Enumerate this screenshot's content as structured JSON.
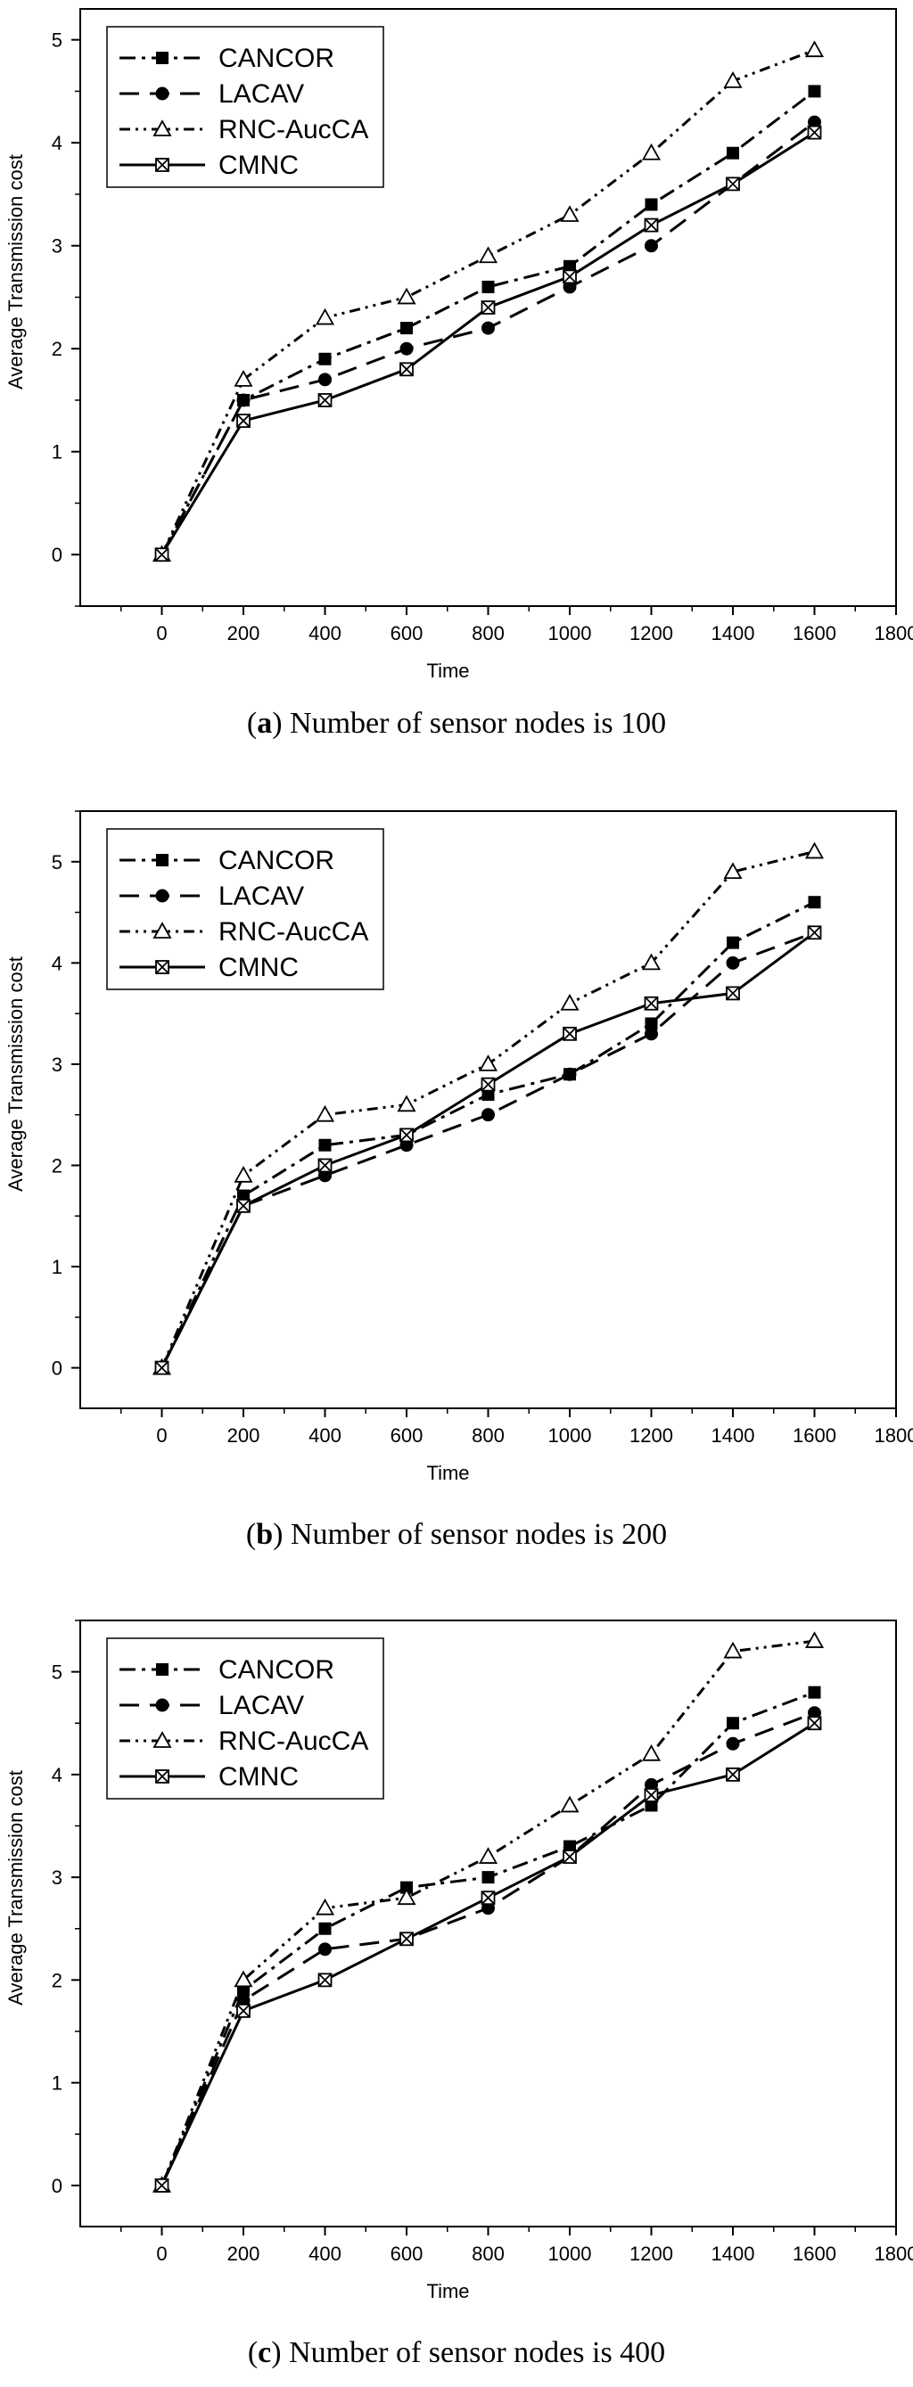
{
  "figure": {
    "panels": [
      {
        "caption_letter": "a",
        "caption_text": "Number of sensor nodes is 100"
      },
      {
        "caption_letter": "b",
        "caption_text": "Number of sensor nodes is 200"
      },
      {
        "caption_letter": "c",
        "caption_text": "Number of sensor nodes is 400"
      }
    ]
  },
  "chart_data": [
    {
      "type": "line",
      "title": "",
      "xlabel": "Time",
      "ylabel": "Average Transmission cost",
      "xlim": [
        -200,
        1800
      ],
      "ylim": [
        -0.5,
        5.3
      ],
      "xticks": [
        0,
        200,
        400,
        600,
        800,
        1000,
        1200,
        1400,
        1600,
        1800
      ],
      "yticks": [
        0,
        1,
        2,
        3,
        4,
        5
      ],
      "legend_position": "top-left",
      "grid": false,
      "x": [
        0,
        200,
        400,
        600,
        800,
        1000,
        1200,
        1400,
        1600
      ],
      "series": [
        {
          "name": "CANCOR",
          "marker": "square",
          "dash": "dash-dot",
          "values": [
            0,
            1.5,
            1.9,
            2.2,
            2.6,
            2.8,
            3.4,
            3.9,
            4.5
          ]
        },
        {
          "name": "LACAV",
          "marker": "circle",
          "dash": "dash",
          "values": [
            0,
            1.5,
            1.7,
            2.0,
            2.2,
            2.6,
            3.0,
            3.6,
            4.2
          ]
        },
        {
          "name": "RNC-AucCA",
          "marker": "triangle",
          "dash": "dash-dot-dot",
          "values": [
            0,
            1.7,
            2.3,
            2.5,
            2.9,
            3.3,
            3.9,
            4.6,
            4.9
          ]
        },
        {
          "name": "CMNC",
          "marker": "crossed-square",
          "dash": "solid",
          "values": [
            0,
            1.3,
            1.5,
            1.8,
            2.4,
            2.7,
            3.2,
            3.6,
            4.1
          ]
        }
      ]
    },
    {
      "type": "line",
      "title": "",
      "xlabel": "Time",
      "ylabel": "Average Transmission cost",
      "xlim": [
        -200,
        1800
      ],
      "ylim": [
        -0.4,
        5.5
      ],
      "xticks": [
        0,
        200,
        400,
        600,
        800,
        1000,
        1200,
        1400,
        1600,
        1800
      ],
      "yticks": [
        0,
        1,
        2,
        3,
        4,
        5
      ],
      "legend_position": "top-left",
      "grid": false,
      "x": [
        0,
        200,
        400,
        600,
        800,
        1000,
        1200,
        1400,
        1600
      ],
      "series": [
        {
          "name": "CANCOR",
          "marker": "square",
          "dash": "dash-dot",
          "values": [
            0,
            1.7,
            2.2,
            2.3,
            2.7,
            2.9,
            3.4,
            4.2,
            4.6
          ]
        },
        {
          "name": "LACAV",
          "marker": "circle",
          "dash": "dash",
          "values": [
            0,
            1.6,
            1.9,
            2.2,
            2.5,
            2.9,
            3.3,
            4.0,
            4.3
          ]
        },
        {
          "name": "RNC-AucCA",
          "marker": "triangle",
          "dash": "dash-dot-dot",
          "values": [
            0,
            1.9,
            2.5,
            2.6,
            3.0,
            3.6,
            4.0,
            4.9,
            5.1
          ]
        },
        {
          "name": "CMNC",
          "marker": "crossed-square",
          "dash": "solid",
          "values": [
            0,
            1.6,
            2.0,
            2.3,
            2.8,
            3.3,
            3.6,
            3.7,
            4.3
          ]
        }
      ]
    },
    {
      "type": "line",
      "title": "",
      "xlabel": "Time",
      "ylabel": "Average Transmission cost",
      "xlim": [
        -200,
        1800
      ],
      "ylim": [
        -0.4,
        5.5
      ],
      "xticks": [
        0,
        200,
        400,
        600,
        800,
        1000,
        1200,
        1400,
        1600,
        1800
      ],
      "yticks": [
        0,
        1,
        2,
        3,
        4,
        5
      ],
      "legend_position": "top-left",
      "grid": false,
      "x": [
        0,
        200,
        400,
        600,
        800,
        1000,
        1200,
        1400,
        1600
      ],
      "series": [
        {
          "name": "CANCOR",
          "marker": "square",
          "dash": "dash-dot",
          "values": [
            0,
            1.9,
            2.5,
            2.9,
            3.0,
            3.3,
            3.7,
            4.5,
            4.8
          ]
        },
        {
          "name": "LACAV",
          "marker": "circle",
          "dash": "dash",
          "values": [
            0,
            1.8,
            2.3,
            2.4,
            2.7,
            3.2,
            3.9,
            4.3,
            4.6
          ]
        },
        {
          "name": "RNC-AucCA",
          "marker": "triangle",
          "dash": "dash-dot-dot",
          "values": [
            0,
            2.0,
            2.7,
            2.8,
            3.2,
            3.7,
            4.2,
            5.2,
            5.3
          ]
        },
        {
          "name": "CMNC",
          "marker": "crossed-square",
          "dash": "solid",
          "values": [
            0,
            1.7,
            2.0,
            2.4,
            2.8,
            3.2,
            3.8,
            4.0,
            4.5
          ]
        }
      ]
    }
  ]
}
